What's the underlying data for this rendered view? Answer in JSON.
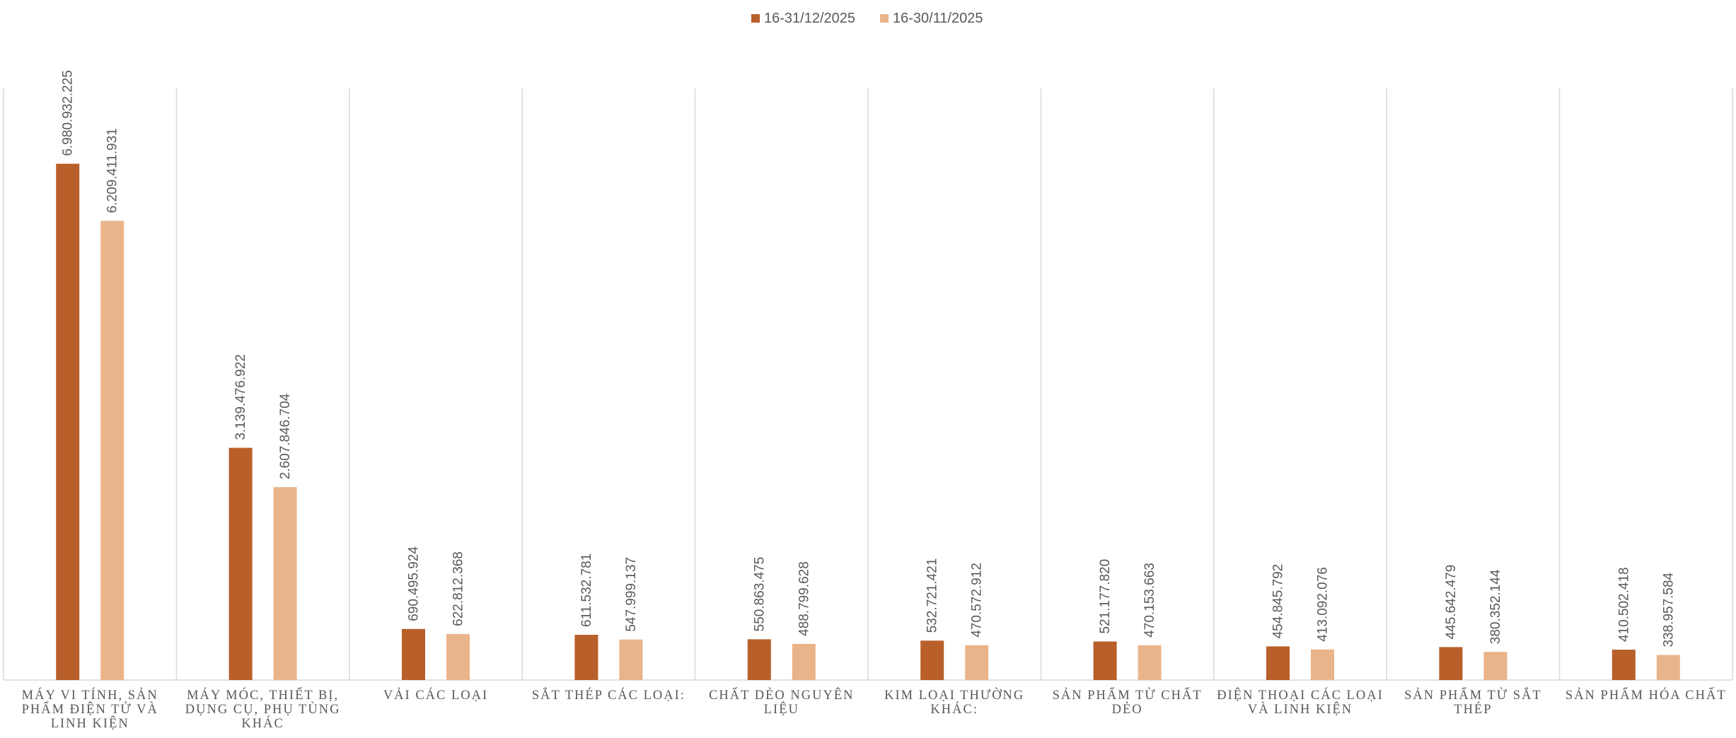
{
  "chart_data": {
    "type": "bar",
    "title": "",
    "xlabel": "",
    "ylabel": "",
    "grid": "vertical category separators",
    "legend_position": "top-center",
    "categories": [
      [
        "MÁY VI TÍNH, SẢN",
        "PHẨM ĐIỆN TỬ VÀ",
        "LINH KIỆN"
      ],
      [
        "MÁY MÓC, THIẾT BỊ,",
        "DỤNG CỤ, PHỤ TÙNG",
        "KHÁC"
      ],
      [
        "VẢI CÁC LOẠI"
      ],
      [
        "SẮT THÉP CÁC LOẠI:"
      ],
      [
        "CHẤT DẺO NGUYÊN",
        "LIỆU"
      ],
      [
        "KIM LOẠI THƯỜNG",
        "KHÁC:"
      ],
      [
        "SẢN PHẨM TỪ CHẤT",
        "DẺO"
      ],
      [
        "ĐIỆN THOẠI CÁC LOẠI",
        "VÀ LINH KIỆN"
      ],
      [
        "SẢN PHẨM TỪ SẮT",
        "THÉP"
      ],
      [
        "SẢN PHẨM HÓA CHẤT"
      ]
    ],
    "series": [
      {
        "name": "16-31/12/2025",
        "color": "#B85F2A",
        "values": [
          6980932225,
          3139476922,
          690495924,
          611532781,
          550863475,
          532721421,
          521177820,
          454845792,
          445642479,
          410502418
        ],
        "labels": [
          "6.980.932.225",
          "3.139.476.922",
          "690.495.924",
          "611.532.781",
          "550.863.475",
          "532.721.421",
          "521.177.820",
          "454.845.792",
          "445.642.479",
          "410.502.418"
        ]
      },
      {
        "name": "16-30/11/2025",
        "color": "#EAB48A",
        "values": [
          6209411931,
          2607846704,
          622812368,
          547999137,
          488799628,
          470572912,
          470153663,
          413092076,
          380352144,
          338957584
        ],
        "labels": [
          "6.209.411.931",
          "2.607.846.704",
          "622.812.368",
          "547.999.137",
          "488.799.628",
          "470.572.912",
          "470.153.663",
          "413.092.076",
          "380.352.144",
          "338.957.584"
        ]
      }
    ],
    "ylim": [
      0,
      8000000000
    ]
  }
}
